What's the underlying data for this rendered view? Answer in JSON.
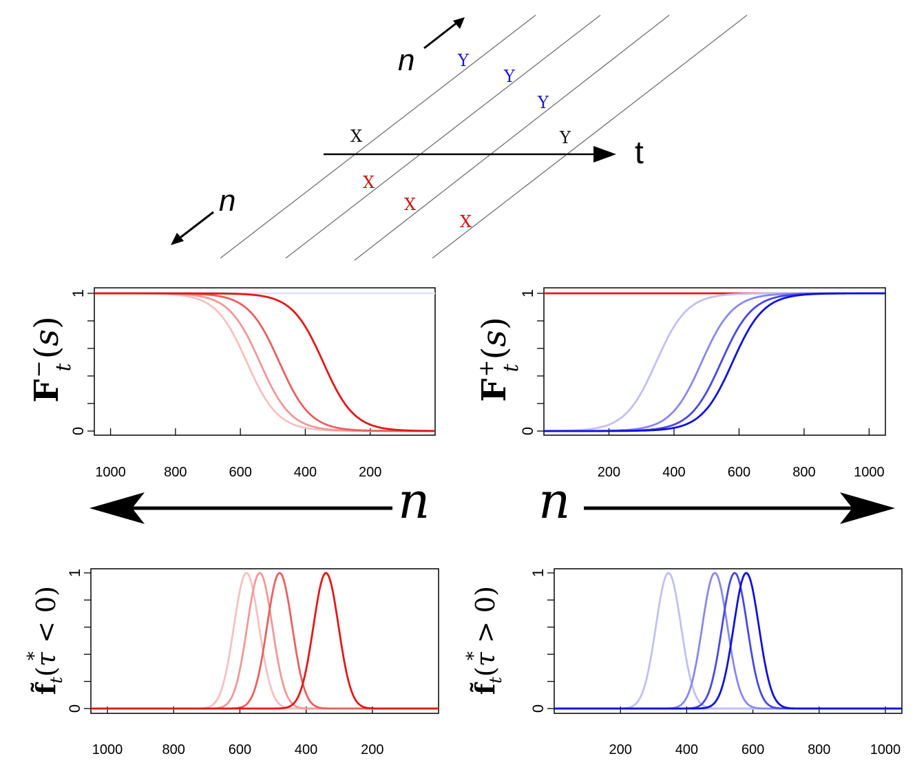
{
  "diagram": {
    "axis_label_t": "t",
    "arrow_label_n_top": "n",
    "arrow_label_n_bottom": "n",
    "labels": [
      {
        "text": "Y",
        "color": "#1a1acc"
      },
      {
        "text": "Y",
        "color": "#1a1acc"
      },
      {
        "text": "Y",
        "color": "#1a1acc"
      },
      {
        "text": "X",
        "color": "#111111"
      },
      {
        "text": "Y",
        "color": "#111111"
      },
      {
        "text": "X",
        "color": "#cc1111"
      },
      {
        "text": "X",
        "color": "#cc1111"
      },
      {
        "text": "X",
        "color": "#cc1111"
      }
    ]
  },
  "middle": {
    "n_label_left": "n",
    "n_label_right": "n"
  },
  "chart_data": [
    {
      "type": "line",
      "name": "F_minus",
      "ylabel": "F_t^-(s)",
      "xlim": [
        1050,
        0
      ],
      "ylim": [
        0,
        1
      ],
      "xticks": [
        1000,
        800,
        600,
        400,
        200
      ],
      "yticks": [
        "0",
        "1"
      ],
      "series": [
        {
          "name": "flat",
          "kind": "flat",
          "value": 1,
          "color": "#e0e0ff"
        },
        {
          "name": "s1",
          "kind": "sigmoid_dec",
          "center": 580,
          "scale": 48,
          "color": "#f7c0c0"
        },
        {
          "name": "s2",
          "kind": "sigmoid_dec",
          "center": 540,
          "scale": 48,
          "color": "#f09898"
        },
        {
          "name": "s3",
          "kind": "sigmoid_dec",
          "center": 480,
          "scale": 48,
          "color": "#e86060"
        },
        {
          "name": "s4",
          "kind": "sigmoid_dec",
          "center": 345,
          "scale": 48,
          "color": "#e01818"
        }
      ]
    },
    {
      "type": "line",
      "name": "F_plus",
      "ylabel": "F_t^+(s)",
      "xlim": [
        0,
        1050
      ],
      "ylim": [
        0,
        1
      ],
      "xticks": [
        200,
        400,
        600,
        800,
        1000
      ],
      "yticks": [
        "0",
        "1"
      ],
      "series": [
        {
          "name": "flat",
          "kind": "flat",
          "value": 1,
          "color": "#ee1111"
        },
        {
          "name": "s1",
          "kind": "sigmoid_inc",
          "center": 345,
          "scale": 48,
          "color": "#c0c0f4"
        },
        {
          "name": "s2",
          "kind": "sigmoid_inc",
          "center": 485,
          "scale": 48,
          "color": "#8888ee"
        },
        {
          "name": "s3",
          "kind": "sigmoid_inc",
          "center": 545,
          "scale": 48,
          "color": "#4848e4"
        },
        {
          "name": "s4",
          "kind": "sigmoid_inc",
          "center": 580,
          "scale": 48,
          "color": "#1010dc"
        }
      ]
    },
    {
      "type": "line",
      "name": "f_minus",
      "ylabel": "f_t(tau* < 0)",
      "xlim": [
        1050,
        0
      ],
      "ylim": [
        0,
        1
      ],
      "xticks": [
        1000,
        800,
        600,
        400,
        200
      ],
      "yticks": [
        "0",
        "1"
      ],
      "series": [
        {
          "name": "flat",
          "kind": "flat",
          "value": 0,
          "color": "#f6b6b6"
        },
        {
          "name": "g1",
          "kind": "gauss",
          "center": 580,
          "width": 38,
          "color": "#f7c0c0"
        },
        {
          "name": "g2",
          "kind": "gauss",
          "center": 540,
          "width": 38,
          "color": "#f09898"
        },
        {
          "name": "g3",
          "kind": "gauss",
          "center": 480,
          "width": 38,
          "color": "#e86060"
        },
        {
          "name": "g4",
          "kind": "gauss",
          "center": 340,
          "width": 38,
          "color": "#e01818"
        }
      ]
    },
    {
      "type": "line",
      "name": "f_plus",
      "ylabel": "f_t(tau* > 0)",
      "xlim": [
        0,
        1050
      ],
      "ylim": [
        0,
        1
      ],
      "xticks": [
        200,
        400,
        600,
        800,
        1000
      ],
      "yticks": [
        "0",
        "1"
      ],
      "series": [
        {
          "name": "flat",
          "kind": "flat",
          "value": 0,
          "color": "#a8a8ee"
        },
        {
          "name": "g1",
          "kind": "gauss",
          "center": 345,
          "width": 38,
          "color": "#c0c0f4"
        },
        {
          "name": "g2",
          "kind": "gauss",
          "center": 485,
          "width": 38,
          "color": "#8888ee"
        },
        {
          "name": "g3",
          "kind": "gauss",
          "center": 545,
          "width": 38,
          "color": "#4848e4"
        },
        {
          "name": "g4",
          "kind": "gauss",
          "center": 580,
          "width": 38,
          "color": "#1010dc"
        }
      ]
    }
  ]
}
